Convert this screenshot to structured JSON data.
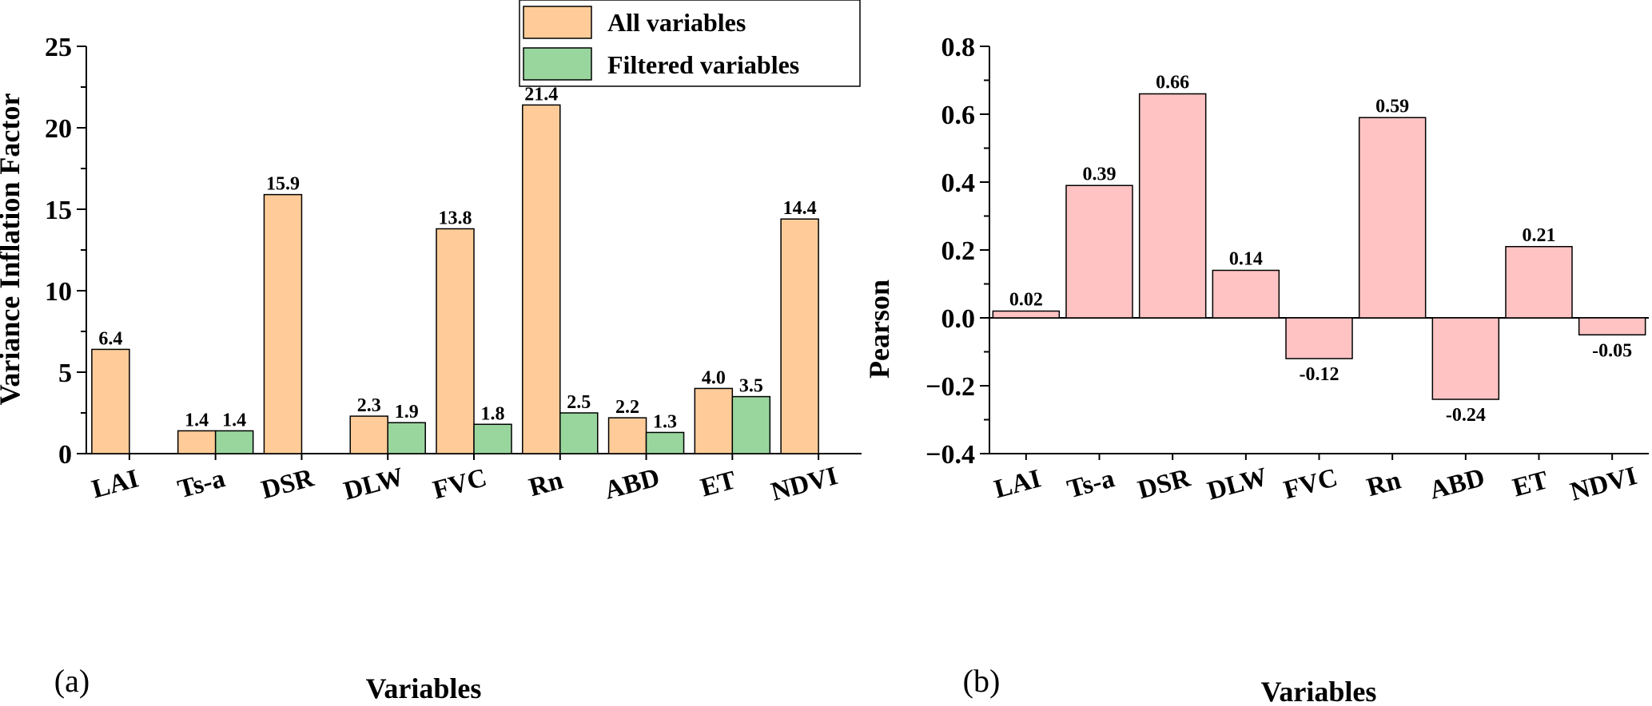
{
  "colors": {
    "all_variables": "#FFCC99",
    "filtered_variables": "#99D69E",
    "pearson": "#FFC3C3",
    "outline": "#000000"
  },
  "chart_data": [
    {
      "panel_label": "(a)",
      "type": "bar",
      "title": "",
      "xlabel": "Variables",
      "ylabel": "Variance Inflation Factor",
      "ylim": [
        0,
        25
      ],
      "yticks": [
        0,
        5,
        10,
        15,
        20,
        25
      ],
      "categories": [
        "LAI",
        "Ts-a",
        "DSR",
        "DLW",
        "FVC",
        "Rn",
        "ABD",
        "ET",
        "NDVI"
      ],
      "legend_position": "top-center",
      "series": [
        {
          "name": "All variables",
          "values": [
            6.4,
            1.4,
            15.9,
            2.3,
            13.8,
            21.4,
            2.2,
            4.0,
            14.4
          ],
          "labels": [
            "6.4",
            "1.4",
            "15.9",
            "2.3",
            "13.8",
            "21.4",
            "2.2",
            "4.0",
            "14.4"
          ]
        },
        {
          "name": "Filtered variables",
          "values": [
            null,
            1.4,
            null,
            1.9,
            1.8,
            2.5,
            1.3,
            3.5,
            null
          ],
          "labels": [
            "",
            "1.4",
            "",
            "1.9",
            "1.8",
            "2.5",
            "1.3",
            "3.5",
            ""
          ]
        }
      ]
    },
    {
      "panel_label": "(b)",
      "type": "bar",
      "title": "",
      "xlabel": "Variables",
      "ylabel": "Pearson",
      "ylim": [
        -0.4,
        0.8
      ],
      "yticks": [
        "0.8",
        "0.6",
        "0.4",
        "0.2",
        "0.0",
        "−0.2",
        "−0.4"
      ],
      "ytick_values": [
        0.8,
        0.6,
        0.4,
        0.2,
        0.0,
        -0.2,
        -0.4
      ],
      "categories": [
        "LAI",
        "Ts-a",
        "DSR",
        "DLW",
        "FVC",
        "Rn",
        "ABD",
        "ET",
        "NDVI"
      ],
      "series": [
        {
          "name": "Pearson",
          "values": [
            0.02,
            0.39,
            0.66,
            0.14,
            -0.12,
            0.59,
            -0.24,
            0.21,
            -0.05
          ],
          "labels": [
            "0.02",
            "0.39",
            "0.66",
            "0.14",
            "-0.12",
            "0.59",
            "-0.24",
            "0.21",
            "-0.05"
          ]
        }
      ]
    }
  ]
}
